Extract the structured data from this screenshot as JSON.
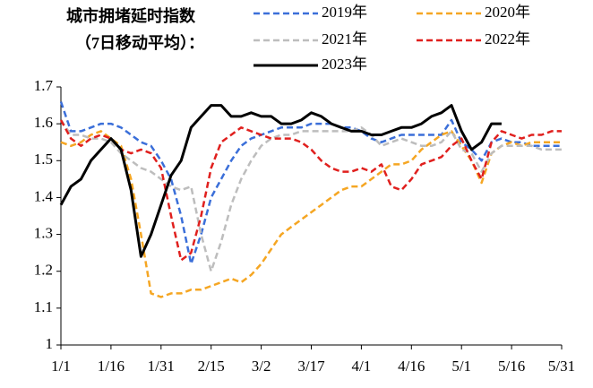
{
  "chart_data": {
    "type": "line",
    "title": "城市拥堵延时指数",
    "subtitle": "（7日移动平均）：",
    "x": [
      0,
      3,
      6,
      9,
      12,
      15,
      18,
      21,
      24,
      27,
      30,
      33,
      36,
      39,
      42,
      45,
      48,
      51,
      54,
      57,
      60,
      63,
      66,
      69,
      72,
      75,
      78,
      81,
      84,
      87,
      90,
      93,
      96,
      99,
      102,
      105,
      108,
      111,
      114,
      117,
      120,
      123,
      126,
      129,
      132,
      135,
      138,
      141,
      144,
      147,
      150
    ],
    "xlim": [
      0,
      150
    ],
    "xticks": [
      {
        "value": 0,
        "label": "1/1"
      },
      {
        "value": 15,
        "label": "1/16"
      },
      {
        "value": 30,
        "label": "1/31"
      },
      {
        "value": 45,
        "label": "2/15"
      },
      {
        "value": 60,
        "label": "3/2"
      },
      {
        "value": 75,
        "label": "3/17"
      },
      {
        "value": 90,
        "label": "4/1"
      },
      {
        "value": 105,
        "label": "4/16"
      },
      {
        "value": 120,
        "label": "5/1"
      },
      {
        "value": 135,
        "label": "5/16"
      },
      {
        "value": 150,
        "label": "5/31"
      }
    ],
    "ylim": [
      1,
      1.7
    ],
    "yticks": [
      1,
      1.1,
      1.2,
      1.3,
      1.4,
      1.5,
      1.6,
      1.7
    ],
    "series": [
      {
        "name": "2019年",
        "color": "#3b6fd9",
        "style": "dashed",
        "values": [
          1.66,
          1.58,
          1.58,
          1.59,
          1.6,
          1.6,
          1.59,
          1.57,
          1.55,
          1.54,
          1.5,
          1.45,
          1.35,
          1.22,
          1.3,
          1.4,
          1.45,
          1.5,
          1.54,
          1.56,
          1.57,
          1.58,
          1.59,
          1.59,
          1.59,
          1.6,
          1.6,
          1.6,
          1.59,
          1.59,
          1.58,
          1.56,
          1.55,
          1.56,
          1.57,
          1.57,
          1.57,
          1.57,
          1.57,
          1.61,
          1.55,
          1.53,
          1.5,
          1.55,
          1.56,
          1.55,
          1.55,
          1.54,
          1.54,
          1.54,
          1.54
        ]
      },
      {
        "name": "2020年",
        "color": "#f5a623",
        "style": "dashed",
        "values": [
          1.55,
          1.54,
          1.55,
          1.57,
          1.58,
          1.56,
          1.54,
          1.45,
          1.3,
          1.14,
          1.13,
          1.14,
          1.14,
          1.15,
          1.15,
          1.16,
          1.17,
          1.18,
          1.17,
          1.19,
          1.22,
          1.26,
          1.3,
          1.32,
          1.34,
          1.36,
          1.38,
          1.4,
          1.42,
          1.43,
          1.43,
          1.45,
          1.47,
          1.49,
          1.49,
          1.5,
          1.53,
          1.55,
          1.57,
          1.58,
          1.54,
          1.5,
          1.44,
          1.52,
          1.54,
          1.55,
          1.54,
          1.55,
          1.55,
          1.55,
          1.55
        ]
      },
      {
        "name": "2021年",
        "color": "#bdbdbd",
        "style": "dashed",
        "values": [
          1.61,
          1.57,
          1.57,
          1.56,
          1.56,
          1.55,
          1.52,
          1.5,
          1.48,
          1.47,
          1.45,
          1.43,
          1.42,
          1.43,
          1.3,
          1.2,
          1.28,
          1.38,
          1.45,
          1.5,
          1.54,
          1.56,
          1.57,
          1.57,
          1.58,
          1.58,
          1.58,
          1.58,
          1.58,
          1.58,
          1.59,
          1.57,
          1.54,
          1.55,
          1.56,
          1.55,
          1.54,
          1.54,
          1.55,
          1.58,
          1.53,
          1.52,
          1.47,
          1.52,
          1.54,
          1.54,
          1.54,
          1.54,
          1.53,
          1.53,
          1.53
        ]
      },
      {
        "name": "2022年",
        "color": "#e0201e",
        "style": "dashed",
        "values": [
          1.61,
          1.56,
          1.54,
          1.56,
          1.57,
          1.56,
          1.53,
          1.52,
          1.53,
          1.52,
          1.48,
          1.35,
          1.23,
          1.25,
          1.35,
          1.48,
          1.55,
          1.57,
          1.59,
          1.58,
          1.57,
          1.56,
          1.56,
          1.56,
          1.55,
          1.53,
          1.5,
          1.48,
          1.47,
          1.47,
          1.48,
          1.47,
          1.49,
          1.43,
          1.42,
          1.45,
          1.49,
          1.5,
          1.51,
          1.54,
          1.56,
          1.5,
          1.45,
          1.55,
          1.58,
          1.57,
          1.56,
          1.57,
          1.57,
          1.58,
          1.58
        ]
      },
      {
        "name": "2023年",
        "color": "#000000",
        "style": "solid",
        "values": [
          1.38,
          1.43,
          1.45,
          1.5,
          1.53,
          1.56,
          1.53,
          1.42,
          1.24,
          1.3,
          1.38,
          1.46,
          1.5,
          1.59,
          1.62,
          1.65,
          1.65,
          1.62,
          1.62,
          1.63,
          1.62,
          1.62,
          1.6,
          1.6,
          1.61,
          1.63,
          1.62,
          1.6,
          1.59,
          1.58,
          1.58,
          1.57,
          1.57,
          1.58,
          1.59,
          1.59,
          1.6,
          1.62,
          1.63,
          1.65,
          1.58,
          1.53,
          1.55,
          1.6,
          1.6,
          null,
          null,
          null,
          null,
          null,
          null
        ]
      }
    ]
  }
}
